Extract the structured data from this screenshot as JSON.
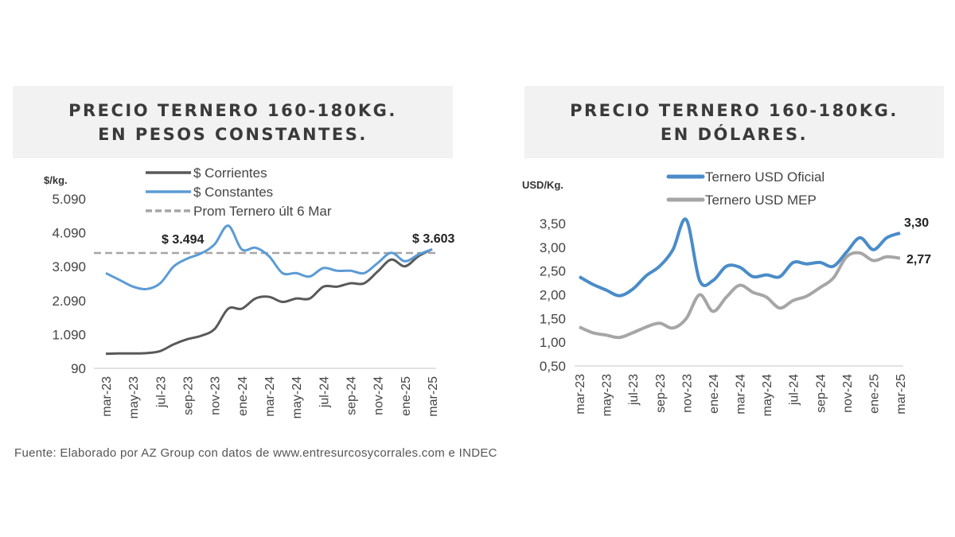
{
  "source": "Fuente: Elaborado por AZ Group con datos de www.entresurcosycorrales.com e INDEC",
  "chart_data": [
    {
      "type": "line",
      "title": "PRECIO TERNERO 160-180KG.\nEN PESOS CONSTANTES.",
      "ylabel": "$/kg.",
      "ylim": [
        90,
        5090
      ],
      "yticks": [
        "90",
        "1.090",
        "2.090",
        "3.090",
        "4.090",
        "5.090"
      ],
      "ytick_values": [
        90,
        1090,
        2090,
        3090,
        4090,
        5090
      ],
      "categories": [
        "mar-23",
        "abr-23",
        "may-23",
        "jun-23",
        "jul-23",
        "ago-23",
        "sep-23",
        "oct-23",
        "nov-23",
        "dic-23",
        "ene-24",
        "feb-24",
        "mar-24",
        "abr-24",
        "may-24",
        "jun-24",
        "jul-24",
        "ago-24",
        "sep-24",
        "oct-24",
        "nov-24",
        "dic-24",
        "ene-25",
        "feb-25",
        "mar-25"
      ],
      "xtick_labels": [
        "mar-23",
        "may-23",
        "jul-23",
        "sep-23",
        "nov-23",
        "ene-24",
        "mar-24",
        "may-24",
        "jul-24",
        "sep-24",
        "nov-24",
        "ene-25",
        "mar-25"
      ],
      "series": [
        {
          "name": "$ Corrientes",
          "color": "#595959",
          "values": [
            520,
            530,
            530,
            540,
            600,
            800,
            950,
            1050,
            1250,
            1850,
            1850,
            2150,
            2200,
            2050,
            2150,
            2150,
            2500,
            2500,
            2600,
            2600,
            2950,
            3300,
            3100,
            3400,
            3603
          ]
        },
        {
          "name": "$ Constantes",
          "color": "#5b9bd5",
          "values": [
            2900,
            2700,
            2500,
            2430,
            2600,
            3100,
            3330,
            3480,
            3750,
            4300,
            3600,
            3650,
            3400,
            2900,
            2900,
            2800,
            3050,
            2970,
            2970,
            2900,
            3200,
            3500,
            3250,
            3450,
            3603
          ]
        }
      ],
      "reference": {
        "name": "Prom Ternero últ 6 Mar",
        "value": 3494,
        "color": "#a6a6a6",
        "style": "dashed"
      },
      "annotations": [
        "$ 3.494",
        "$ 3.603"
      ],
      "legend": "top",
      "grid": false
    },
    {
      "type": "line",
      "title": "PRECIO TERNERO 160-180KG.\nEN DÓLARES.",
      "ylabel": "USD/Kg.",
      "ylim": [
        0.5,
        3.5
      ],
      "yticks": [
        "0,50",
        "1,00",
        "1,50",
        "2,00",
        "2,50",
        "3,00",
        "3,50"
      ],
      "ytick_values": [
        0.5,
        1,
        1.5,
        2,
        2.5,
        3,
        3.5
      ],
      "categories": [
        "mar-23",
        "abr-23",
        "may-23",
        "jun-23",
        "jul-23",
        "ago-23",
        "sep-23",
        "oct-23",
        "nov-23",
        "dic-23",
        "ene-24",
        "feb-24",
        "mar-24",
        "abr-24",
        "may-24",
        "jun-24",
        "jul-24",
        "ago-24",
        "sep-24",
        "oct-24",
        "nov-24",
        "dic-24",
        "ene-25",
        "feb-25",
        "mar-25"
      ],
      "xtick_labels": [
        "mar-23",
        "may-23",
        "jul-23",
        "sep-23",
        "nov-23",
        "ene-24",
        "mar-24",
        "may-24",
        "jul-24",
        "sep-24",
        "nov-24",
        "ene-25",
        "mar-25"
      ],
      "series": [
        {
          "name": "Ternero USD Oficial",
          "color": "#4a8cc8",
          "values": [
            2.38,
            2.22,
            2.1,
            1.98,
            2.12,
            2.4,
            2.6,
            2.95,
            3.58,
            2.3,
            2.3,
            2.6,
            2.58,
            2.38,
            2.42,
            2.38,
            2.68,
            2.65,
            2.68,
            2.6,
            2.9,
            3.2,
            2.95,
            3.2,
            3.3
          ]
        },
        {
          "name": "Ternero USD MEP",
          "color": "#a6a6a6",
          "values": [
            1.32,
            1.2,
            1.15,
            1.1,
            1.2,
            1.32,
            1.4,
            1.3,
            1.5,
            2.0,
            1.65,
            1.95,
            2.2,
            2.05,
            1.95,
            1.72,
            1.88,
            1.97,
            2.15,
            2.35,
            2.8,
            2.88,
            2.72,
            2.8,
            2.77
          ]
        }
      ],
      "annotations": [
        "3,30",
        "2,77"
      ],
      "legend": "top",
      "grid": false
    }
  ]
}
